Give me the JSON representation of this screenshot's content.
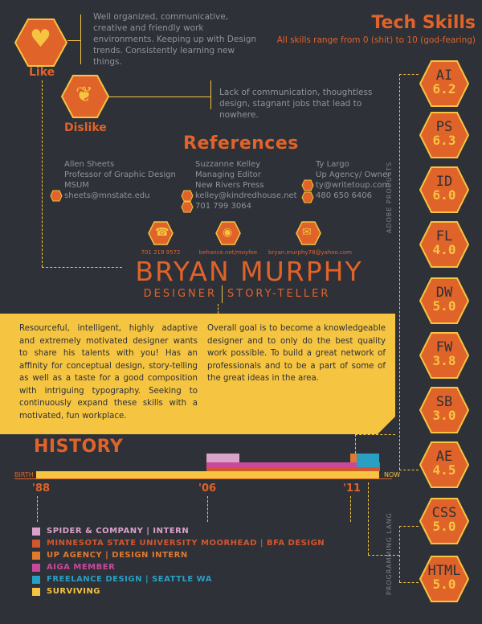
{
  "like": {
    "label": "Like",
    "text": "Well organized, communicative, creative and friendly work environments. Keeping up with Design trends. Consistently learning new things."
  },
  "dislike": {
    "label": "Dislike",
    "text": "Lack of communication, thoughtless design, stagnant jobs that lead to nowhere."
  },
  "tech": {
    "title": "Tech Skills",
    "subtitle": "All skills range from 0 (shit) to 10 (god-fearing)",
    "adobe_label": "ADOBE PRODUCTS",
    "prog_label": "PROGRAMMING LANG",
    "skills": [
      {
        "name": "AI",
        "value": "6.2"
      },
      {
        "name": "PS",
        "value": "6.3"
      },
      {
        "name": "ID",
        "value": "6.0"
      },
      {
        "name": "FL",
        "value": "4.0"
      },
      {
        "name": "DW",
        "value": "5.0"
      },
      {
        "name": "FW",
        "value": "3.8"
      },
      {
        "name": "SB",
        "value": "3.0"
      },
      {
        "name": "AE",
        "value": "4.5"
      },
      {
        "name": "CSS",
        "value": "5.0"
      },
      {
        "name": "HTML",
        "value": "5.0"
      }
    ]
  },
  "references": {
    "title": "References",
    "people": [
      {
        "name": "Allen Sheets",
        "role": "Professor of Graphic Design",
        "org": "MSUM",
        "email": "sheets@mnstate.edu",
        "phone": ""
      },
      {
        "name": "Suzzanne Kelley",
        "role": "Managing Editor",
        "org": "New Rivers Press",
        "email": "kelley@kindredhouse.net",
        "phone": "701 799 3064"
      },
      {
        "name": "Ty Largo",
        "role": "Up Agency/ Owner",
        "org": "",
        "email": "ty@writetoup.com",
        "phone": "480 650 6406"
      }
    ]
  },
  "contact": {
    "phone": "701 219 9572",
    "web": "behance.net/moyfee",
    "email": "bryan.murphy78@yahoo.com"
  },
  "name": "BRYAN MURPHY",
  "roles": {
    "left": "DESIGNER",
    "right": "STORY-TELLER"
  },
  "bio": {
    "left": "Resourceful, intelligent, highly adaptive and extremely motivated designer wants to share his talents with you! Has an affinity for conceptual design, story-telling as well as a taste for a good composition with intriguing typography. Seeking to continuously expand these skills with a motivated, fun workplace.",
    "right": "Overall goal is to become a knowledgeable designer and to only do the best quality work possible. To build a great network of professionals and to be a part of some of the great ideas in the area."
  },
  "history": {
    "title": "HISTORY",
    "start_label": "BIRTH",
    "end_label": "NOW",
    "years": [
      "'88",
      "'06",
      "'11"
    ],
    "items": [
      {
        "label": "SPIDER & COMPANY | INTERN",
        "color": "#d9a3c8"
      },
      {
        "label": "MINNESOTA STATE UNIVERSITY MOORHEAD | BFA DESIGN",
        "color": "#d2562e"
      },
      {
        "label": "UP AGENCY | DESIGN INTERN",
        "color": "#e07a2e"
      },
      {
        "label": "AIGA MEMBER",
        "color": "#c9489c"
      },
      {
        "label": "FREELANCE DESIGN | SEATTLE WA",
        "color": "#2a9fc4"
      },
      {
        "label": "SURVIVING",
        "color": "#f5c440"
      }
    ]
  },
  "colors": {
    "accent": "#e0632a",
    "yellow": "#f5c440",
    "bg": "#2e3138"
  }
}
